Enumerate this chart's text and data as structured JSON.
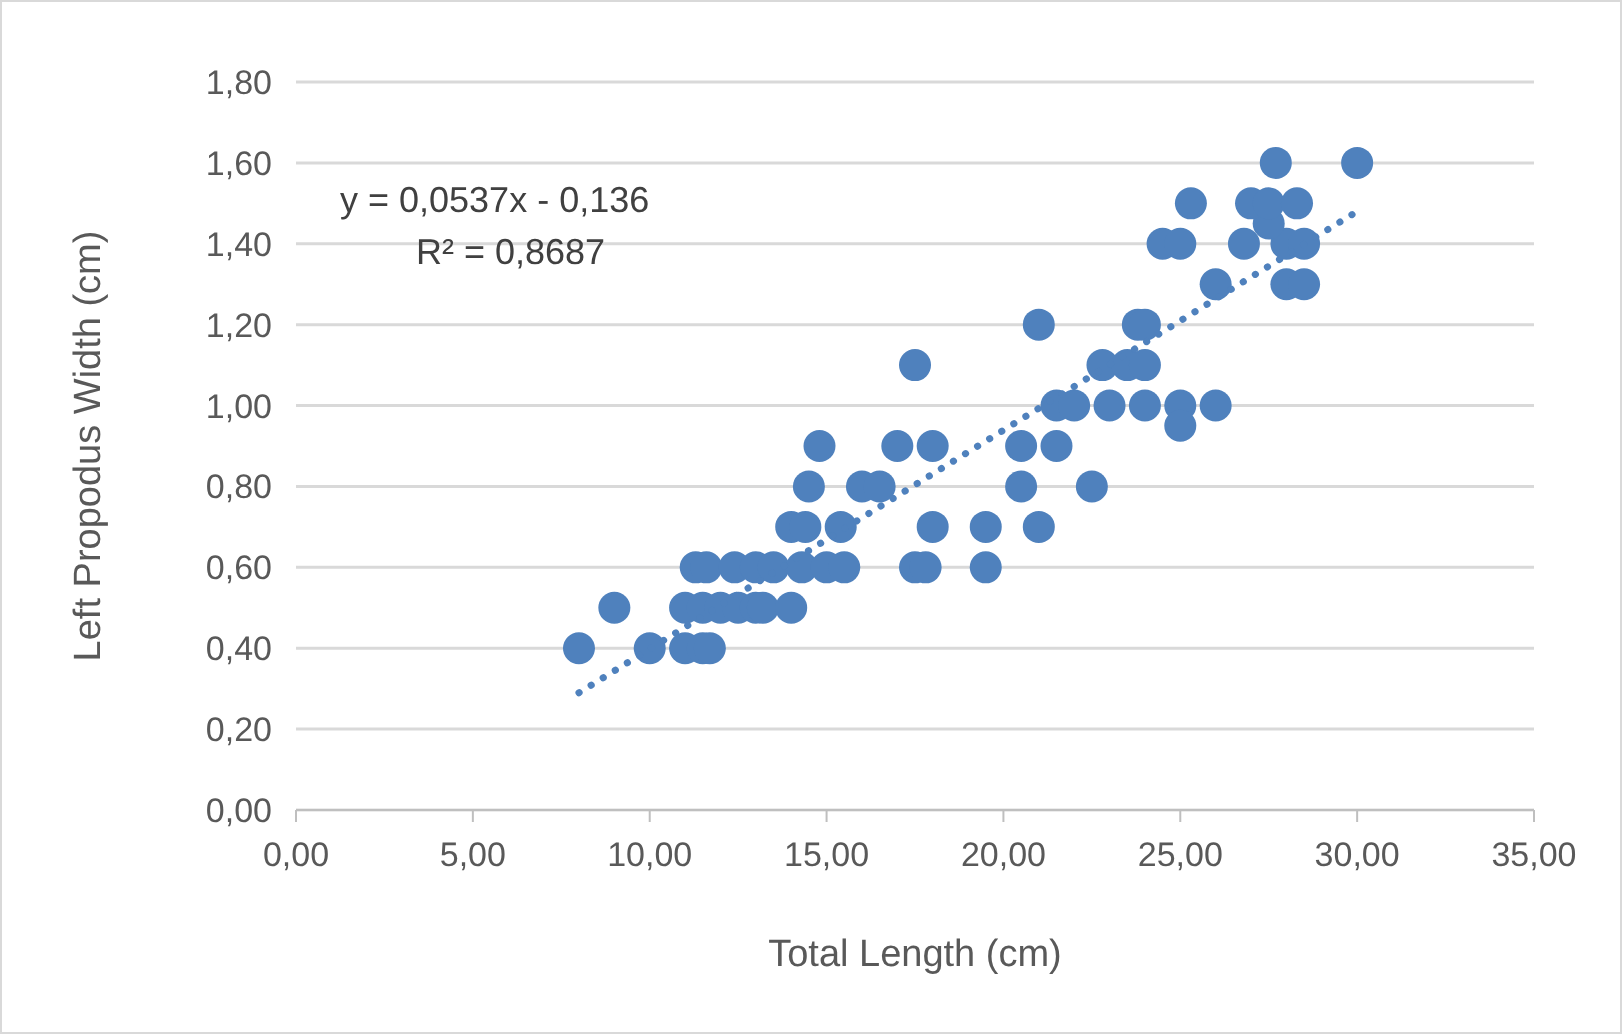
{
  "chart_data": {
    "type": "scatter",
    "xlabel": "Total Length (cm)",
    "ylabel": "Left Propodus Width (cm)",
    "xlim": [
      0,
      35
    ],
    "ylim": [
      0,
      1.8
    ],
    "xticks": [
      {
        "value": 0,
        "label": "0,00"
      },
      {
        "value": 5,
        "label": "5,00"
      },
      {
        "value": 10,
        "label": "10,00"
      },
      {
        "value": 15,
        "label": "15,00"
      },
      {
        "value": 20,
        "label": "20,00"
      },
      {
        "value": 25,
        "label": "25,00"
      },
      {
        "value": 30,
        "label": "30,00"
      },
      {
        "value": 35,
        "label": "35,00"
      }
    ],
    "yticks": [
      {
        "value": 0,
        "label": "0,00"
      },
      {
        "value": 0.2,
        "label": "0,20"
      },
      {
        "value": 0.4,
        "label": "0,40"
      },
      {
        "value": 0.6,
        "label": "0,60"
      },
      {
        "value": 0.8,
        "label": "0,80"
      },
      {
        "value": 1,
        "label": "1,00"
      },
      {
        "value": 1.2,
        "label": "1,20"
      },
      {
        "value": 1.4,
        "label": "1,40"
      },
      {
        "value": 1.6,
        "label": "1,60"
      },
      {
        "value": 1.8,
        "label": "1,80"
      }
    ],
    "grid": "y",
    "annotations": [
      "y = 0,0537x - 0,136",
      "R² = 0,8687"
    ],
    "series": [
      {
        "marker": "circle",
        "color": "#4f81bd",
        "x": [
          8,
          10,
          11,
          11.5,
          11.7,
          9,
          11,
          11.5,
          12,
          12.5,
          13,
          13.2,
          14,
          11.3,
          11.6,
          12.4,
          13,
          13.5,
          14.3,
          15,
          15.5,
          17.5,
          17.8,
          19.5,
          14,
          14.4,
          15.4,
          18,
          19.5,
          21,
          14.5,
          16,
          16.5,
          20.5,
          22.5,
          14.8,
          17,
          18,
          20.5,
          21.5,
          21.5,
          22,
          23,
          24,
          25,
          26,
          17.5,
          22.8,
          23.5,
          24,
          21,
          23.8,
          24,
          25,
          26,
          28,
          28.5,
          24.5,
          25,
          26.8,
          28,
          28.5,
          27.5,
          25.3,
          27,
          27.5,
          28.3,
          27.7,
          30
        ],
        "values": [
          0.4,
          0.4,
          0.4,
          0.4,
          0.4,
          0.5,
          0.5,
          0.5,
          0.5,
          0.5,
          0.5,
          0.5,
          0.5,
          0.6,
          0.6,
          0.6,
          0.6,
          0.6,
          0.6,
          0.6,
          0.6,
          0.6,
          0.6,
          0.6,
          0.7,
          0.7,
          0.7,
          0.7,
          0.7,
          0.7,
          0.8,
          0.8,
          0.8,
          0.8,
          0.8,
          0.9,
          0.9,
          0.9,
          0.9,
          0.9,
          1,
          1,
          1,
          1,
          1,
          1,
          1.1,
          1.1,
          1.1,
          1.1,
          1.2,
          1.2,
          1.2,
          0.95,
          1.3,
          1.3,
          1.3,
          1.4,
          1.4,
          1.4,
          1.4,
          1.4,
          1.45,
          1.5,
          1.5,
          1.5,
          1.5,
          1.6,
          1.6
        ]
      },
      {
        "type": "line",
        "line_style": "dotted",
        "color": "#4f81bd",
        "x": [
          8,
          30
        ],
        "values": [
          0.29,
          1.48
        ]
      }
    ]
  }
}
